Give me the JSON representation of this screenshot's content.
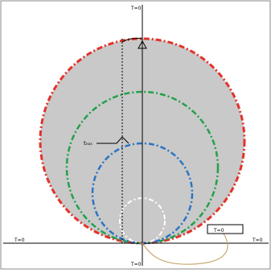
{
  "labels": {
    "top": "T=0",
    "bottom": "T=0",
    "left": "T=0",
    "right": "T=0",
    "inset": "T=0",
    "callout": "tₙₐₛ"
  },
  "colors": {
    "background": "#ffffff",
    "fill": "#c9c9c9",
    "outer_circle": "#e3322a",
    "green_circle": "#23a04b",
    "blue_circle": "#2c74c4",
    "white_circle": "#ffffff",
    "axes": "#000000",
    "orbit": "#c9a96e"
  }
}
